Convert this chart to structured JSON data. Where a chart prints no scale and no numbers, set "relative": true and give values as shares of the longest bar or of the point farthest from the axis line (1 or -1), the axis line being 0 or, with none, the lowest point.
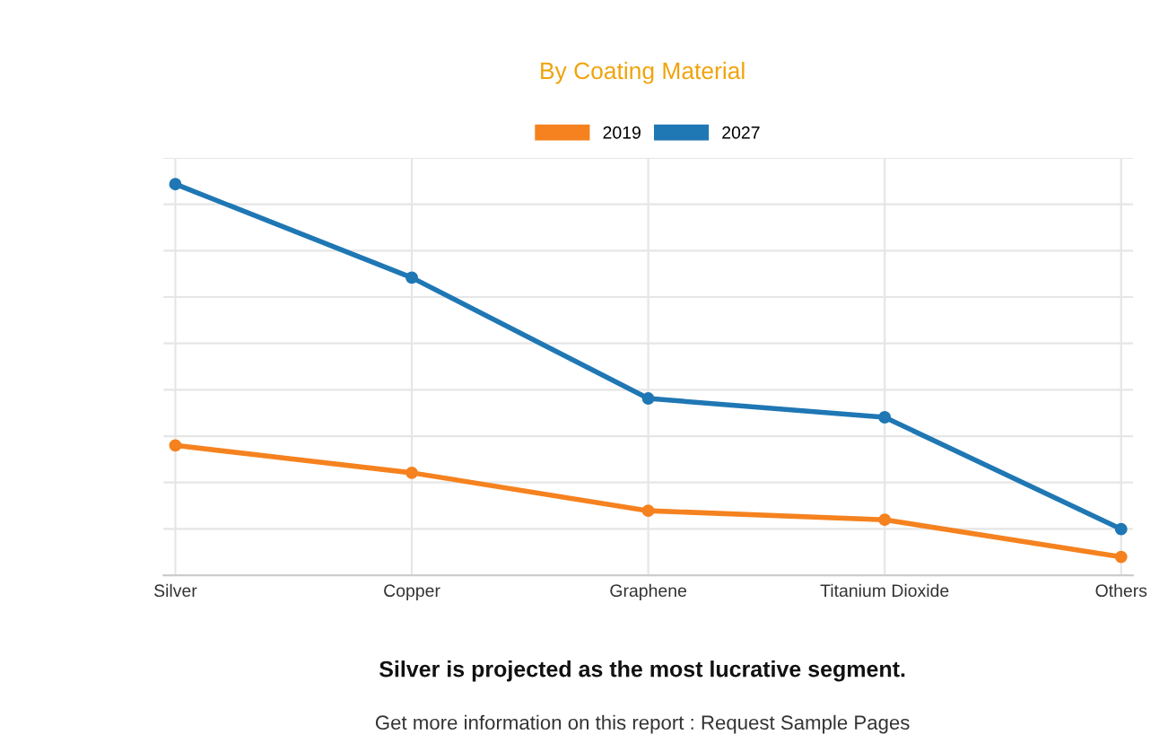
{
  "chart_data": {
    "type": "line",
    "title": "By Coating Material",
    "relative": true,
    "categories": [
      "Silver",
      "Copper",
      "Graphene",
      "Titanium Dioxide",
      "Others"
    ],
    "series": [
      {
        "name": "2019",
        "color": "#f5821f",
        "values": [
          0.332,
          0.262,
          0.165,
          0.142,
          0.047
        ]
      },
      {
        "name": "2027",
        "color": "#1f77b4",
        "values": [
          1,
          0.761,
          0.452,
          0.404,
          0.118
        ]
      }
    ],
    "legend": "top",
    "grid": true,
    "marker": "circle",
    "line_style": "solid",
    "annotations": [
      "Silver is projected as the most lucrative segment.",
      "Get more information on this report : Request Sample Pages"
    ]
  }
}
